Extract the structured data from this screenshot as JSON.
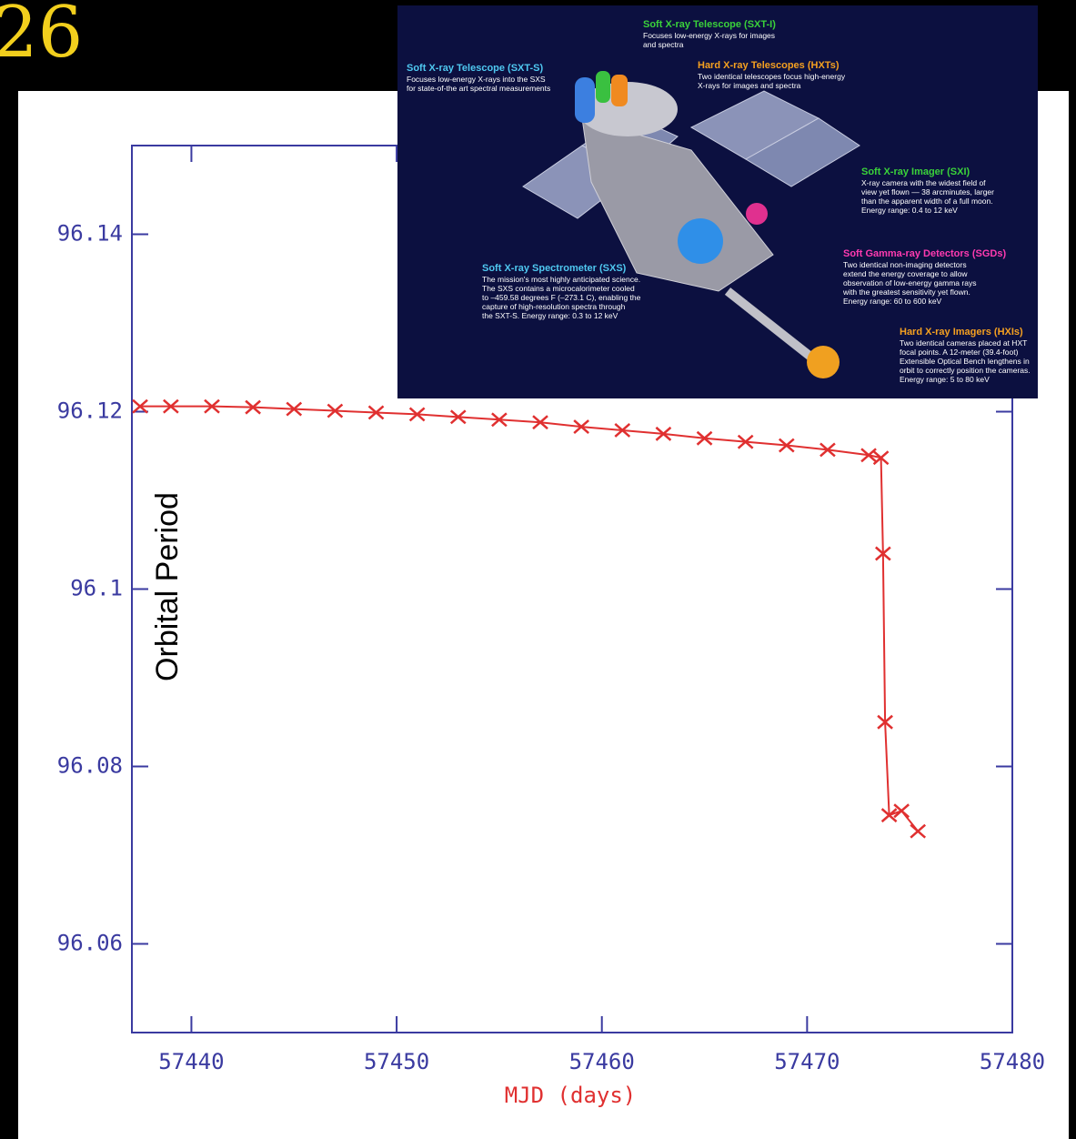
{
  "page_number": "26",
  "chart_data": {
    "type": "line",
    "xlabel": "MJD (days)",
    "ylabel": "Orbital Period",
    "xlim": [
      57437.1,
      57480
    ],
    "xticks": [
      57440,
      57450,
      57460,
      57470,
      57480
    ],
    "ylim": [
      96.05,
      96.15
    ],
    "yticks": [
      96.06,
      96.08,
      96.1,
      96.12,
      96.14
    ],
    "color": "#e03030",
    "x": [
      57437.5,
      57439,
      57441,
      57443,
      57445,
      57447,
      57449,
      57451,
      57453,
      57455,
      57457,
      57459,
      57461,
      57463,
      57465,
      57467,
      57469,
      57471,
      57473,
      57473.6,
      57473.7,
      57473.8,
      57474,
      57474.6,
      57475.4
    ],
    "values": [
      96.1206,
      96.1206,
      96.1206,
      96.1205,
      96.1203,
      96.1201,
      96.1199,
      96.1197,
      96.1194,
      96.1191,
      96.1188,
      96.1183,
      96.1179,
      96.1175,
      96.117,
      96.1166,
      96.1162,
      96.1157,
      96.1151,
      96.1148,
      96.104,
      96.085,
      96.0745,
      96.075,
      96.0727
    ]
  },
  "inset": {
    "labels": [
      {
        "title": "Soft X-ray Telescope (SXT-I)",
        "lines": [
          "Focuses low-energy X-rays for images",
          "and spectra"
        ]
      },
      {
        "title": "Hard X-ray Telescopes (HXTs)",
        "lines": [
          "Two identical telescopes focus high-energy",
          "X-rays for images and spectra"
        ]
      },
      {
        "title": "Soft X-ray Telescope (SXT-S)",
        "lines": [
          "Focuses low-energy X-rays into the SXS",
          "for state-of-the art spectral measurements"
        ]
      },
      {
        "title": "Soft X-ray Imager (SXI)",
        "lines": [
          "X-ray camera with the widest field of",
          "view yet flown — 38 arcminutes, larger",
          "than the apparent width of a full moon.",
          "Energy range: 0.4 to 12 keV"
        ]
      },
      {
        "title": "Soft Gamma-ray Detectors (SGDs)",
        "lines": [
          "Two identical non-imaging detectors",
          "extend the energy coverage to allow",
          "observation of low-energy gamma rays",
          "with the greatest sensitivity yet flown.",
          "Energy range: 60 to 600 keV"
        ]
      },
      {
        "title": "Soft X-ray Spectrometer (SXS)",
        "lines": [
          "The mission's most highly anticipated science.",
          "The SXS contains a microcalorimeter cooled",
          "to –459.58 degrees F (–273.1 C), enabling the",
          "capture of high-resolution spectra through",
          "the SXT-S.  Energy range: 0.3 to 12 keV"
        ]
      },
      {
        "title": "Hard X-ray Imagers (HXIs)",
        "lines": [
          "Two identical cameras placed at HXT",
          "focal points. A 12-meter (39.4-foot)",
          "Extensible Optical Bench lengthens in",
          "orbit to correctly position the cameras.",
          "Energy range: 5 to 80 keV"
        ]
      }
    ]
  }
}
